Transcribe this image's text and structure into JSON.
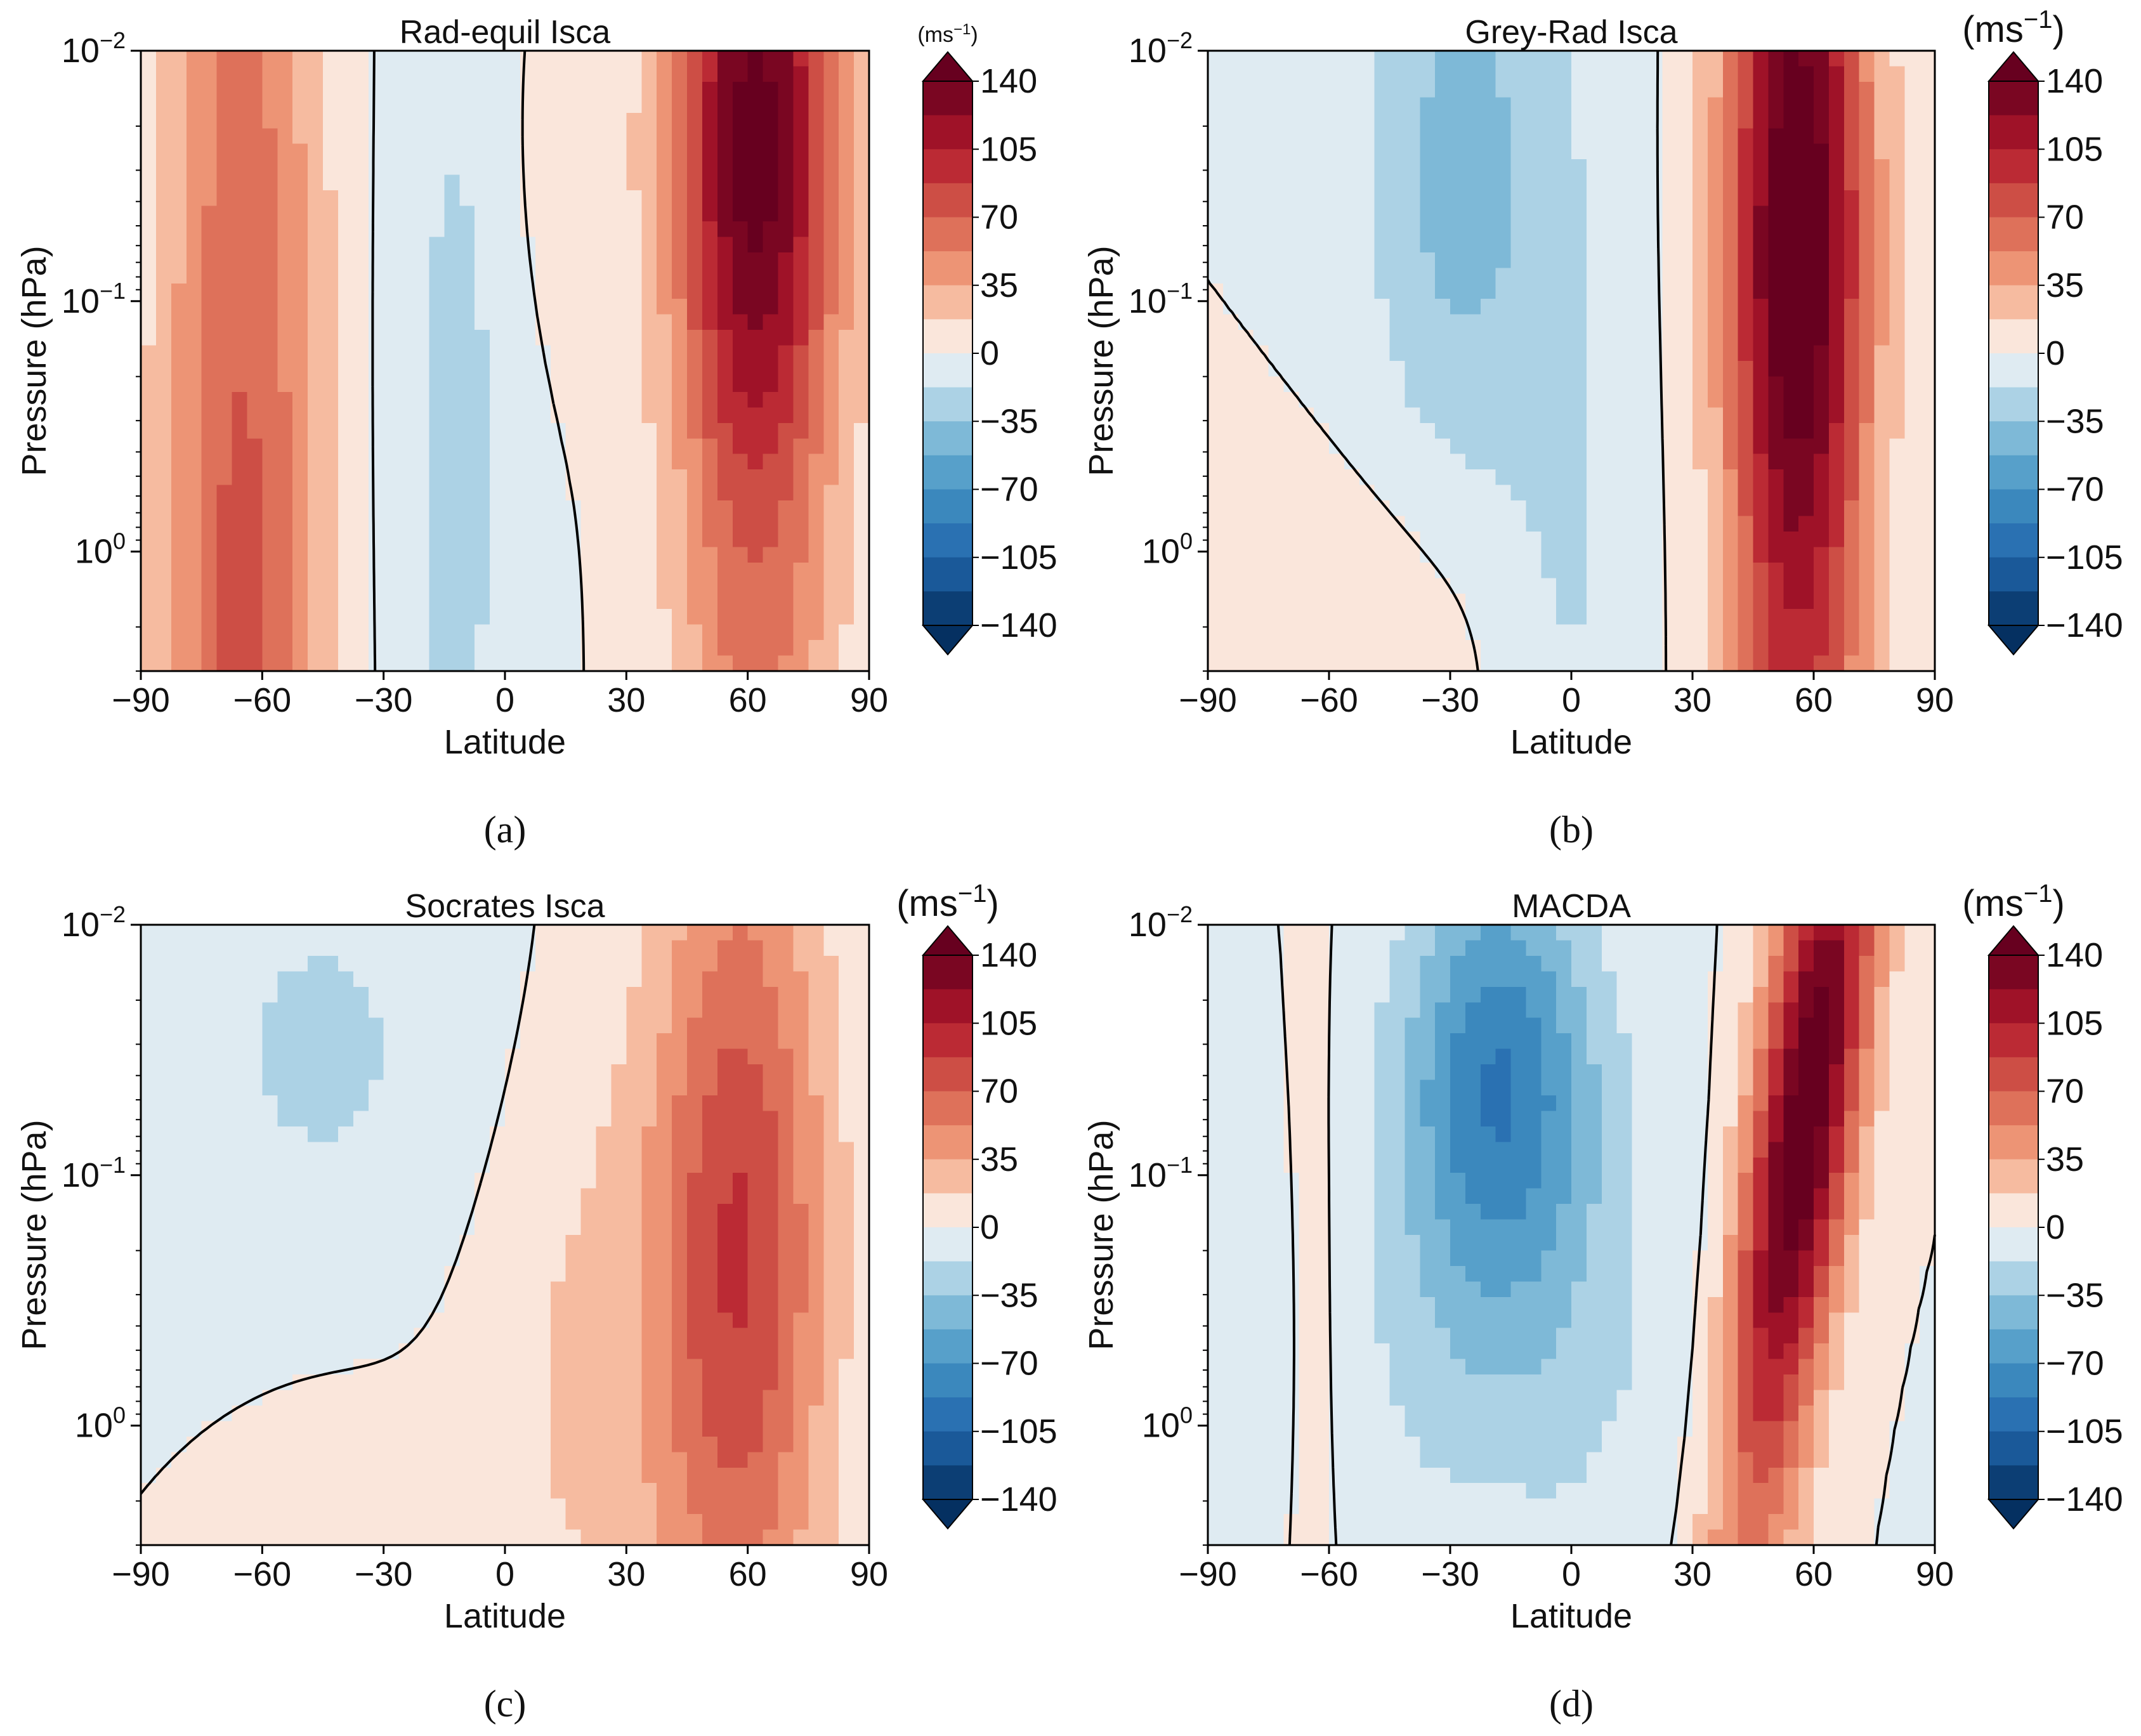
{
  "figure": {
    "xlabel": "Latitude",
    "ylabel": "Pressure (hPa)",
    "unit_base": "(ms",
    "unit_exp": "−1",
    "unit_close": ")",
    "x_ticks": [
      "−90",
      "−60",
      "−30",
      "0",
      "30",
      "60",
      "90"
    ],
    "y_tick_base": "10",
    "y_tick_exps": [
      "−2",
      "−1",
      "0"
    ],
    "colorbar_labels": [
      "140",
      "105",
      "70",
      "35",
      "0",
      "−35",
      "−70",
      "−105",
      "−140"
    ],
    "palette": {
      "neg_dark": "#053061",
      "neg_light": "#f7f7f7",
      "pos_light": "#fddbc7",
      "pos_dark": "#67001f",
      "contour": "#000000"
    }
  },
  "chart_data": [
    {
      "type": "heatmap",
      "panel": "a",
      "caption": "(a)",
      "title": "Rad-equil Isca",
      "xlabel": "Latitude",
      "ylabel": "Pressure (hPa)",
      "xlim": [
        -90,
        90
      ],
      "ylim_hPa": [
        3,
        0.01
      ],
      "yscale": "log",
      "colorbar_range": [
        -140,
        140
      ],
      "colorbar_step": 17.5,
      "zero_contour": true,
      "profile": "rad-equil",
      "notes": "Westerly jet ~140 m/s near 60N between 0.01 and 0.3 hPa; SH westerlies 40-70 m/s near -65; weak easterlies over tropics"
    },
    {
      "type": "heatmap",
      "panel": "b",
      "caption": "(b)",
      "title": "Grey-Rad Isca",
      "xlabel": "Latitude",
      "ylabel": "Pressure (hPa)",
      "xlim": [
        -90,
        90
      ],
      "ylim_hPa": [
        3,
        0.01
      ],
      "yscale": "log",
      "colorbar_range": [
        -140,
        140
      ],
      "colorbar_step": 17.5,
      "zero_contour": true,
      "profile": "grey-rad",
      "notes": "Jet >140 m/s near 55N from 0.01 to 1 hPa; easterlies down to -40 m/s near -30 aloft"
    },
    {
      "type": "heatmap",
      "panel": "c",
      "caption": "(c)",
      "title": "Socrates Isca",
      "xlabel": "Latitude",
      "ylabel": "Pressure (hPa)",
      "xlim": [
        -90,
        90
      ],
      "ylim_hPa": [
        3,
        0.01
      ],
      "yscale": "log",
      "colorbar_range": [
        -140,
        140
      ],
      "colorbar_step": 17.5,
      "zero_contour": true,
      "profile": "socrates",
      "notes": "Broad westerly jet ~80 m/s near 60N around 0.1-0.5 hPa; weak easterlies aloft in SH"
    },
    {
      "type": "heatmap",
      "panel": "d",
      "caption": "(d)",
      "title": "MACDA",
      "xlabel": "Latitude",
      "ylabel": "Pressure (hPa)",
      "xlim": [
        -90,
        90
      ],
      "ylim_hPa": [
        3,
        0.01
      ],
      "yscale": "log",
      "colorbar_range": [
        -140,
        140
      ],
      "colorbar_step": 17.5,
      "zero_contour": true,
      "profile": "macda",
      "notes": "Tilted jet ~140 m/s near 65N aloft; easterly core ~-70 m/s near -20 at 0.04 hPa"
    }
  ]
}
